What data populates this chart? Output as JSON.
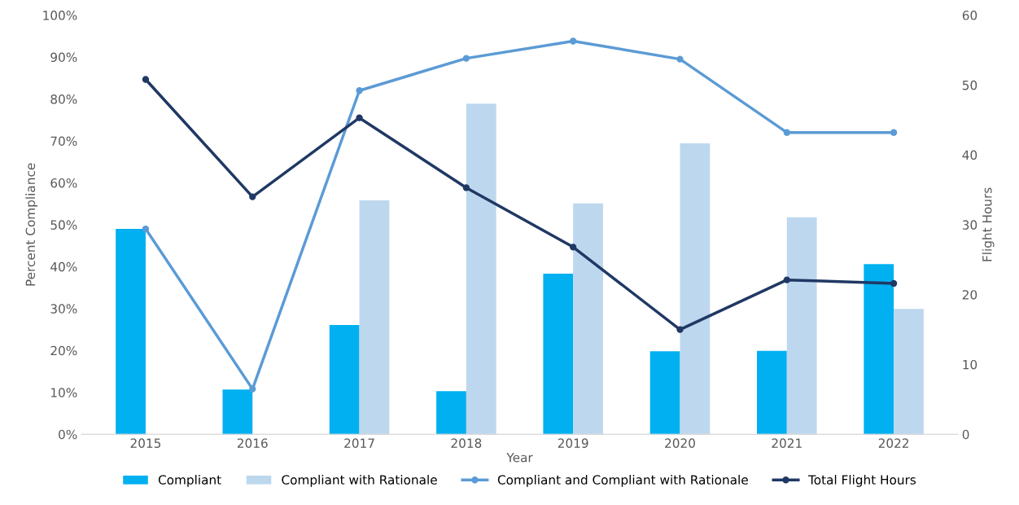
{
  "chart_data": {
    "type": "bar",
    "xlabel": "Year",
    "ylabel": "Percent Compliance",
    "y2label": "Flight Hours",
    "categories": [
      "2015",
      "2016",
      "2017",
      "2018",
      "2019",
      "2020",
      "2021",
      "2022"
    ],
    "series": [
      {
        "name": "Compliant",
        "color": "#00b0f0",
        "values": [
          49.0,
          10.7,
          26.1,
          10.3,
          38.3,
          19.8,
          19.9,
          40.6
        ]
      },
      {
        "name": "Compliant with Rationale",
        "color": "#bdd7ee",
        "values": [
          null,
          null,
          55.8,
          78.9,
          55.1,
          69.4,
          51.8,
          29.9
        ]
      },
      {
        "name": "Compliant and Compliant with Rationale",
        "type": "line",
        "color": "#5b9bd5",
        "values": [
          49.0,
          10.8,
          82.0,
          89.7,
          93.8,
          89.5,
          72.0,
          72.0
        ]
      },
      {
        "name": "Total Flight Hours",
        "type": "line",
        "axis": "y2",
        "color": "#203864",
        "values": [
          50.8,
          34.0,
          45.3,
          35.3,
          26.8,
          15.0,
          22.1,
          21.6
        ]
      }
    ],
    "ylim": [
      0,
      100
    ],
    "yticks": [
      {
        "value": 0,
        "label": "0%"
      },
      {
        "value": 10,
        "label": "10%"
      },
      {
        "value": 20,
        "label": "20%"
      },
      {
        "value": 30,
        "label": "30%"
      },
      {
        "value": 40,
        "label": "40%"
      },
      {
        "value": 50,
        "label": "50%"
      },
      {
        "value": 60,
        "label": "60%"
      },
      {
        "value": 70,
        "label": "70%"
      },
      {
        "value": 80,
        "label": "80%"
      },
      {
        "value": 90,
        "label": "90%"
      },
      {
        "value": 100,
        "label": "100%"
      }
    ],
    "y2lim": [
      0,
      60
    ],
    "y2ticks": [
      0,
      10,
      20,
      30,
      40,
      50,
      60
    ],
    "marker": "circle",
    "legend": "bottom",
    "grid": false
  }
}
